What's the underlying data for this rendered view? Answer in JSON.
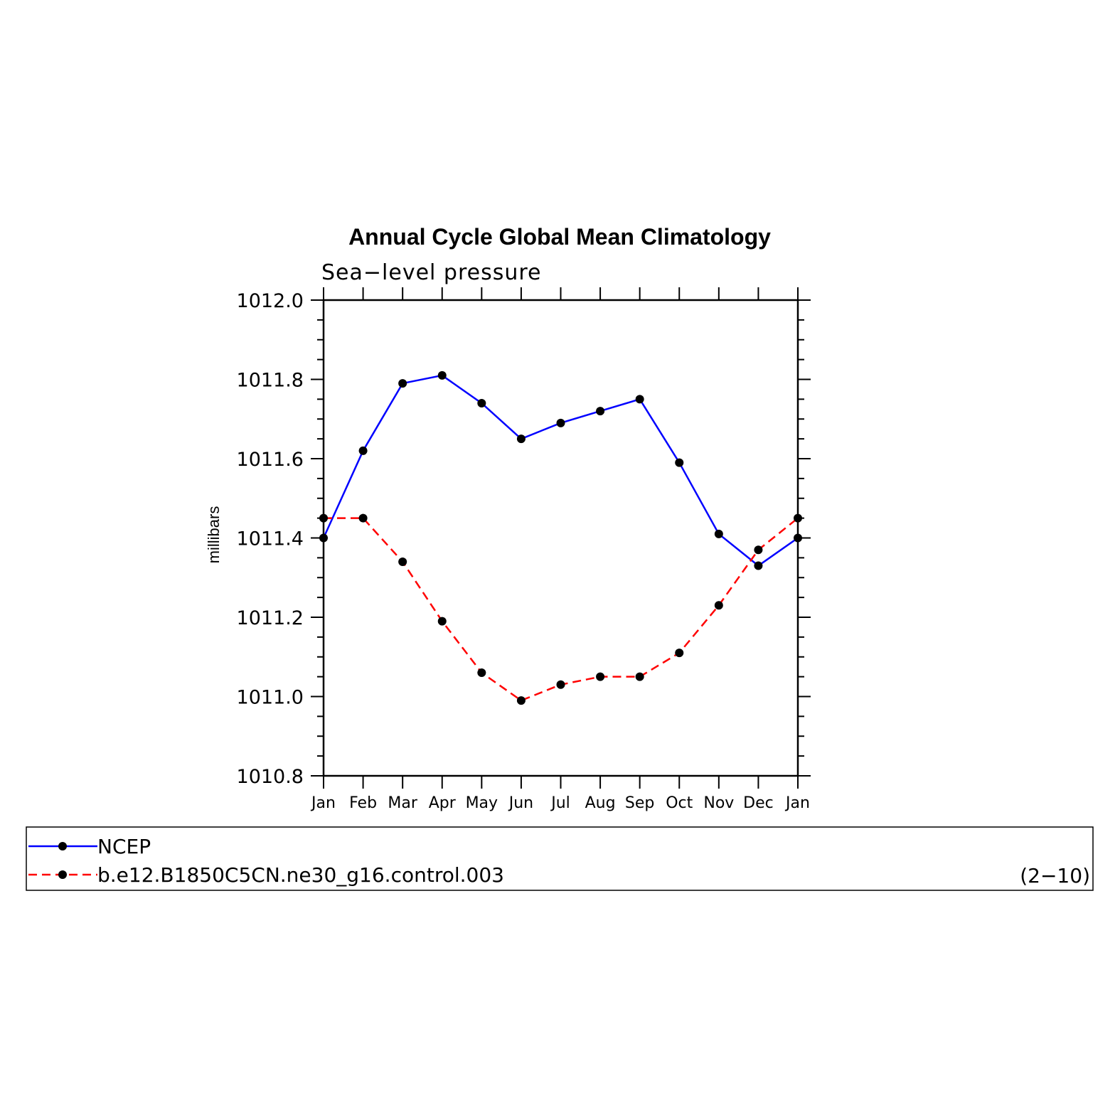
{
  "chart_data": {
    "type": "line",
    "title": "Annual Cycle Global Mean Climatology",
    "subtitle": "Sea−level pressure",
    "ylabel": "millibars",
    "xlabel": "",
    "categories": [
      "Jan",
      "Feb",
      "Mar",
      "Apr",
      "May",
      "Jun",
      "Jul",
      "Aug",
      "Sep",
      "Oct",
      "Nov",
      "Dec",
      "Jan"
    ],
    "ylim": [
      1010.8,
      1012.0
    ],
    "yticks": [
      "1010.8",
      "1011.0",
      "1011.2",
      "1011.4",
      "1011.6",
      "1011.8",
      "1012.0"
    ],
    "y_minor_step": 0.05,
    "grid": false,
    "legend_position": "bottom",
    "series": [
      {
        "name": "NCEP",
        "color": "#0000ff",
        "dash": "solid",
        "marker": "filled-circle",
        "values": [
          1011.4,
          1011.62,
          1011.79,
          1011.81,
          1011.74,
          1011.65,
          1011.69,
          1011.72,
          1011.75,
          1011.59,
          1011.41,
          1011.33,
          1011.4
        ]
      },
      {
        "name": "b.e12.B1850C5CN.ne30_g16.control.003",
        "color": "#ff0000",
        "dash": "dashed",
        "marker": "filled-circle",
        "values": [
          1011.45,
          1011.45,
          1011.34,
          1011.19,
          1011.06,
          1010.99,
          1011.03,
          1011.05,
          1011.05,
          1011.11,
          1011.23,
          1011.37,
          1011.45
        ]
      }
    ],
    "panel_label": "(2−10)",
    "marker_color": "#000000"
  }
}
